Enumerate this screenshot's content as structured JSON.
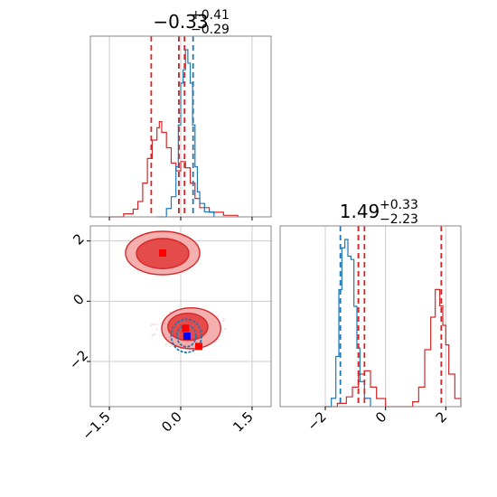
{
  "colors": {
    "red": "#d62728",
    "blue": "#1f77b4",
    "red_fill_outer": "#f4a6a6",
    "red_fill_inner": "#e03a3a",
    "blue_marker": "#0000ff",
    "red_marker": "#ff0000",
    "grid": "#cccccc",
    "frame": "#888888"
  },
  "chart_data": [
    {
      "type": "histogram",
      "panel": "marginal-x",
      "title": {
        "main": "−0.33",
        "sup": "+0.41",
        "sub": "−0.29"
      },
      "xlim": [
        -1.9,
        1.9
      ],
      "grid": true,
      "red_dashed_lines": [
        -0.62,
        -0.04,
        0.08
      ],
      "blue_dashed_lines": [
        -0.04,
        0.26
      ],
      "red_hist": {
        "x": [
          -1.5,
          -1.2,
          -1.0,
          -0.9,
          -0.8,
          -0.7,
          -0.6,
          -0.5,
          -0.45,
          -0.4,
          -0.3,
          -0.2,
          -0.1,
          0.0,
          0.1,
          0.2,
          0.3,
          0.4,
          0.6,
          0.9,
          1.2
        ],
        "y": [
          0.0,
          0.02,
          0.05,
          0.1,
          0.22,
          0.38,
          0.5,
          0.58,
          0.62,
          0.55,
          0.45,
          0.35,
          0.3,
          0.36,
          0.32,
          0.22,
          0.12,
          0.06,
          0.03,
          0.01,
          0.0
        ]
      },
      "blue_hist": {
        "x": [
          -0.5,
          -0.3,
          -0.2,
          -0.1,
          -0.05,
          0.0,
          0.05,
          0.1,
          0.15,
          0.2,
          0.25,
          0.3,
          0.35,
          0.4,
          0.5,
          0.7
        ],
        "y": [
          0.0,
          0.05,
          0.12,
          0.3,
          0.55,
          0.8,
          0.88,
          1.0,
          0.92,
          0.8,
          0.55,
          0.3,
          0.15,
          0.08,
          0.03,
          0.0
        ]
      }
    },
    {
      "type": "scatter-contour",
      "panel": "joint",
      "xlim": [
        -1.9,
        1.9
      ],
      "ylim": [
        -3.5,
        2.5
      ],
      "grid": true,
      "y_ticks": [
        2,
        0,
        -2
      ],
      "y_tick_labels": [
        "2",
        "0",
        "−2"
      ],
      "x_ticks": [
        -1.5,
        0.0,
        1.5
      ],
      "x_tick_labels": [
        "−1.5",
        "0.0",
        "1.5"
      ],
      "red_contours": [
        {
          "cx": -0.38,
          "cy": 1.6,
          "rx": 0.78,
          "ry": 0.72,
          "level": "outer"
        },
        {
          "cx": -0.38,
          "cy": 1.58,
          "rx": 0.55,
          "ry": 0.5,
          "level": "inner"
        },
        {
          "cx": 0.22,
          "cy": -0.9,
          "rx": 0.62,
          "ry": 0.68,
          "level": "outer"
        },
        {
          "cx": 0.15,
          "cy": -0.85,
          "rx": 0.42,
          "ry": 0.45,
          "level": "inner"
        }
      ],
      "blue_contours": [
        {
          "cx": 0.12,
          "cy": -1.15,
          "rx": 0.32,
          "ry": 0.55
        },
        {
          "cx": 0.12,
          "cy": -1.15,
          "rx": 0.2,
          "ry": 0.36
        }
      ],
      "red_markers": [
        {
          "x": -0.38,
          "y": 1.6
        },
        {
          "x": 0.1,
          "y": -0.9
        },
        {
          "x": 0.38,
          "y": -1.5
        }
      ],
      "blue_markers": [
        {
          "x": 0.13,
          "y": -1.16
        }
      ]
    },
    {
      "type": "histogram",
      "panel": "marginal-y",
      "title": {
        "main": "1.49",
        "sup": "+0.33",
        "sub": "−2.23"
      },
      "xlim": [
        -3.5,
        2.5
      ],
      "grid": true,
      "x_ticks": [
        -2,
        0,
        2
      ],
      "x_tick_labels": [
        "−2",
        "0",
        "2"
      ],
      "red_dashed_lines": [
        -0.9,
        -0.7,
        1.85
      ],
      "blue_dashed_lines": [
        -1.5,
        -0.9
      ],
      "red_hist": {
        "x": [
          -2.0,
          -1.6,
          -1.3,
          -1.1,
          -0.9,
          -0.7,
          -0.5,
          -0.3,
          0.0,
          0.5,
          0.9,
          1.1,
          1.3,
          1.5,
          1.65,
          1.8,
          1.9,
          2.0,
          2.1,
          2.3,
          2.5
        ],
        "y": [
          0.0,
          0.02,
          0.06,
          0.12,
          0.2,
          0.22,
          0.12,
          0.05,
          0.0,
          0.0,
          0.03,
          0.12,
          0.35,
          0.55,
          0.72,
          0.62,
          0.5,
          0.38,
          0.2,
          0.05,
          0.0
        ]
      },
      "blue_hist": {
        "x": [
          -2.0,
          -1.8,
          -1.65,
          -1.55,
          -1.45,
          -1.35,
          -1.25,
          -1.15,
          -1.05,
          -0.95,
          -0.85,
          -0.7,
          -0.5
        ],
        "y": [
          0.0,
          0.05,
          0.3,
          0.7,
          0.95,
          1.0,
          0.9,
          0.88,
          0.6,
          0.35,
          0.15,
          0.05,
          0.0
        ]
      }
    }
  ]
}
